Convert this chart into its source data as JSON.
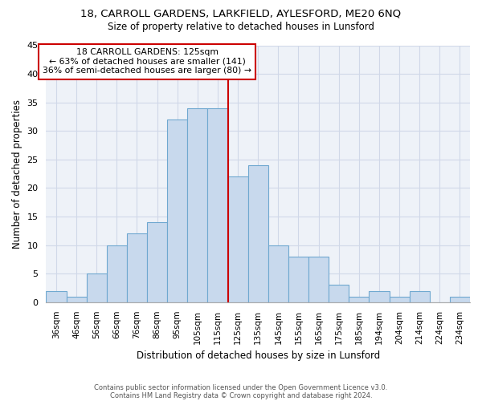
{
  "title1": "18, CARROLL GARDENS, LARKFIELD, AYLESFORD, ME20 6NQ",
  "title2": "Size of property relative to detached houses in Lunsford",
  "xlabel": "Distribution of detached houses by size in Lunsford",
  "ylabel": "Number of detached properties",
  "bin_labels": [
    "36sqm",
    "46sqm",
    "56sqm",
    "66sqm",
    "76sqm",
    "86sqm",
    "95sqm",
    "105sqm",
    "115sqm",
    "125sqm",
    "135sqm",
    "145sqm",
    "155sqm",
    "165sqm",
    "175sqm",
    "185sqm",
    "194sqm",
    "204sqm",
    "214sqm",
    "224sqm",
    "234sqm"
  ],
  "bar_heights": [
    2,
    1,
    5,
    10,
    12,
    14,
    32,
    34,
    34,
    22,
    24,
    10,
    8,
    8,
    3,
    1,
    2,
    1,
    2,
    0,
    1
  ],
  "bar_color": "#c8d9ed",
  "bar_edge_color": "#6fa8d0",
  "vline_color": "#cc0000",
  "annotation_title": "18 CARROLL GARDENS: 125sqm",
  "annotation_line1": "← 63% of detached houses are smaller (141)",
  "annotation_line2": "36% of semi-detached houses are larger (80) →",
  "annotation_box_color": "#ffffff",
  "annotation_box_edge": "#cc0000",
  "ylim": [
    0,
    45
  ],
  "grid_color": "#d0d8e8",
  "bg_color": "#eef2f8",
  "footer1": "Contains HM Land Registry data © Crown copyright and database right 2024.",
  "footer2": "Contains public sector information licensed under the Open Government Licence v3.0."
}
